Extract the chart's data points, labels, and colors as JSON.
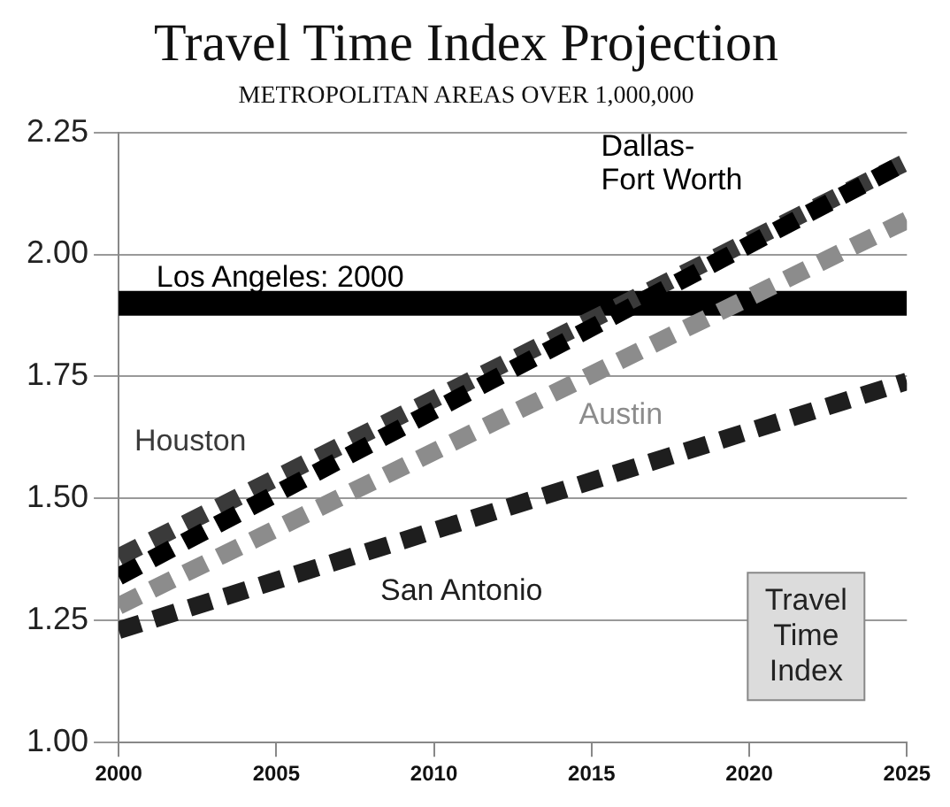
{
  "chart_data": {
    "type": "line",
    "title": "Travel Time Index Projection",
    "subtitle": "METROPOLITAN AREAS OVER 1,000,000",
    "x": [
      2000,
      2025
    ],
    "series": [
      {
        "name": "Dallas-Fort Worth",
        "color": "#000000",
        "values": [
          1.34,
          2.19
        ]
      },
      {
        "name": "Houston",
        "color": "#3a3a3a",
        "values": [
          1.38,
          2.19
        ]
      },
      {
        "name": "Austin",
        "color": "#8c8c8c",
        "values": [
          1.28,
          2.07
        ]
      },
      {
        "name": "San Antonio",
        "color": "#1e1e1e",
        "values": [
          1.23,
          1.74
        ]
      },
      {
        "name": "Los Angeles: 2000",
        "color": "#000000",
        "values": [
          1.9,
          1.9
        ],
        "line_style": "solid"
      }
    ],
    "annotations": [
      "Travel Time Index"
    ],
    "xlim": [
      2000,
      2025
    ],
    "xticks": [
      2000,
      2005,
      2010,
      2015,
      2020,
      2025
    ],
    "ylim": [
      1.0,
      2.25
    ],
    "yticks": [
      {
        "value": 1.0,
        "label": "1.00"
      },
      {
        "value": 1.25,
        "label": "1.25"
      },
      {
        "value": 1.5,
        "label": "1.50"
      },
      {
        "value": 1.75,
        "label": "1.75"
      },
      {
        "value": 2.0,
        "label": "2.00"
      },
      {
        "value": 2.25,
        "label": "2.25"
      }
    ],
    "grid": "y",
    "legend": false,
    "marker": "none",
    "line_style": "dashed"
  }
}
